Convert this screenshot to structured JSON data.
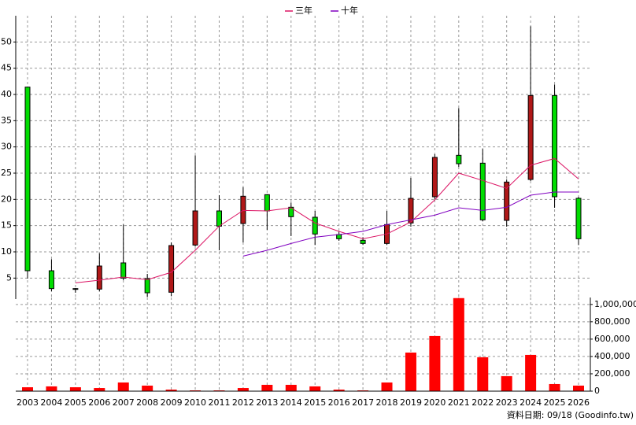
{
  "chart_data": [
    {
      "type": "candlestick",
      "categories": [
        "2003",
        "2004",
        "2005",
        "2006",
        "2007",
        "2008",
        "2009",
        "2010",
        "2011",
        "2012",
        "2013",
        "2014",
        "2015",
        "2016",
        "2017",
        "2018",
        "2019",
        "2020",
        "2021",
        "2022",
        "2023",
        "2024",
        "2025",
        "2026"
      ],
      "open": [
        41.4,
        6.4,
        3.0,
        2.9,
        7.9,
        4.9,
        2.3,
        11.3,
        17.8,
        15.4,
        20.9,
        18.5,
        16.6,
        13.3,
        12.2,
        11.6,
        15.5,
        20.5,
        28.4,
        26.9,
        16.0,
        23.8,
        39.8,
        20.2
      ],
      "high": [
        41.5,
        8.6,
        3.1,
        9.7,
        15.2,
        5.8,
        11.8,
        28.4,
        20.8,
        22.3,
        21.0,
        19.4,
        17.8,
        13.9,
        12.8,
        17.8,
        24.1,
        28.6,
        37.4,
        29.6,
        23.8,
        53.0,
        41.9,
        20.5
      ],
      "low": [
        4.9,
        2.5,
        2.2,
        2.5,
        4.6,
        1.4,
        1.6,
        11.0,
        10.3,
        11.8,
        14.2,
        13.0,
        11.3,
        12.1,
        11.3,
        11.3,
        14.8,
        19.9,
        26.2,
        15.8,
        14.8,
        23.5,
        18.4,
        11.3
      ],
      "close": [
        6.4,
        3.0,
        2.9,
        7.3,
        5.0,
        2.2,
        11.2,
        17.8,
        14.9,
        20.6,
        17.8,
        16.7,
        13.4,
        12.5,
        11.6,
        15.2,
        20.2,
        28.0,
        26.8,
        16.1,
        23.3,
        39.8,
        20.5,
        12.5
      ],
      "up_color": "#b01818",
      "down_color": "#00dd00",
      "series": [
        {
          "name": "三年",
          "color": "#dc1464",
          "values": [
            null,
            null,
            4.1,
            4.6,
            5.2,
            4.7,
            6.1,
            10.3,
            14.9,
            17.9,
            17.8,
            18.4,
            15.5,
            13.9,
            12.5,
            13.4,
            15.7,
            19.9,
            25.0,
            23.6,
            22.1,
            26.5,
            27.8,
            23.9
          ]
        },
        {
          "name": "十年",
          "color": "#8000c0",
          "values": [
            null,
            null,
            null,
            null,
            null,
            null,
            null,
            null,
            null,
            9.2,
            10.3,
            11.6,
            12.8,
            13.3,
            13.9,
            15.2,
            16.1,
            17.0,
            18.4,
            17.9,
            18.5,
            20.8,
            21.4,
            21.4
          ]
        }
      ],
      "ylim": [
        1,
        55
      ],
      "yticks": [
        5,
        10,
        15,
        20,
        25,
        30,
        35,
        40,
        45,
        50
      ],
      "grid": true,
      "footnote": "資料日期: 09/18 (Goodinfo.tw)"
    },
    {
      "type": "bar",
      "categories": [
        "2003",
        "2004",
        "2005",
        "2006",
        "2007",
        "2008",
        "2009",
        "2010",
        "2011",
        "2012",
        "2013",
        "2014",
        "2015",
        "2016",
        "2017",
        "2018",
        "2019",
        "2020",
        "2021",
        "2022",
        "2023",
        "2024",
        "2025",
        "2026"
      ],
      "values": [
        45000,
        55000,
        45000,
        36000,
        100000,
        64000,
        18000,
        9000,
        9000,
        36000,
        73000,
        73000,
        55000,
        18000,
        9000,
        100000,
        445000,
        636000,
        1073000,
        391000,
        173000,
        418000,
        82000,
        64000
      ],
      "color": "#ff0000",
      "ylim": [
        0,
        1080000
      ],
      "yticks": [
        0,
        {
          "value": 200000,
          "label": "200,000"
        },
        {
          "value": 400000,
          "label": "400,000"
        },
        {
          "value": 600000,
          "label": "600,000"
        },
        {
          "value": 800000,
          "label": "800,000"
        },
        {
          "value": 1000000,
          "label": "1,000,000"
        }
      ],
      "grid": true
    }
  ]
}
